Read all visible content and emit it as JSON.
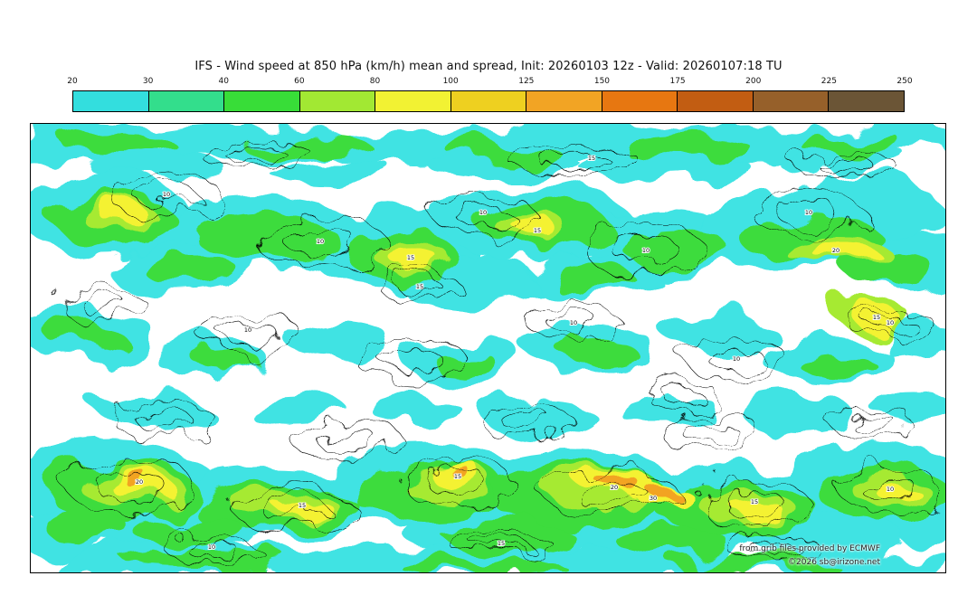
{
  "title": "IFS - Wind speed at 850 hPa (km/h) mean and spread, Init: 20260103 12z - Valid: 20260107:18 TU",
  "colorbar": {
    "ticks": [
      "20",
      "30",
      "40",
      "60",
      "80",
      "100",
      "125",
      "150",
      "175",
      "200",
      "225",
      "250"
    ],
    "colors": [
      "#33dede",
      "#33de8c",
      "#38dd38",
      "#a2e833",
      "#f2f233",
      "#eed020",
      "#f2a424",
      "#e77711",
      "#c25d12",
      "#96602a",
      "#6b5536"
    ]
  },
  "map": {
    "contour_labels": [
      "10",
      "15",
      "20",
      "30"
    ]
  },
  "credits": {
    "source": "from grib files provided by ECMWF",
    "copyright": "©2026 sb@irizone.net"
  },
  "chart_data": {
    "type": "heatmap",
    "title": "IFS - Wind speed at 850 hPa (km/h) mean and spread, Init: 20260103 12z - Valid: 20260107:18 TU",
    "model": "IFS",
    "variable": "Wind speed at 850 hPa",
    "units": "km/h",
    "statistic": "mean and spread",
    "init": "20260103 12z",
    "valid": "20260107:18 TU",
    "projection": "global equirectangular",
    "legend_position": "top",
    "legend_ticks": [
      20,
      30,
      40,
      60,
      80,
      100,
      125,
      150,
      175,
      200,
      225,
      250
    ],
    "legend_colors": [
      "#33dede",
      "#33de8c",
      "#38dd38",
      "#a2e833",
      "#f2f233",
      "#eed020",
      "#f2a424",
      "#e77711",
      "#c25d12",
      "#96602a",
      "#6b5536"
    ],
    "contour_label_values": [
      10,
      15,
      20,
      30
    ],
    "notes": "Filled contours of ensemble-mean wind speed (cyan 20-40, green 40-80, yellow 80-125, orange 125-175 km/h); thin black contours show ensemble spread labeled 10/15/20/30; strongest cores along the Southern Ocean storm track and northern mid-latitude jets."
  }
}
